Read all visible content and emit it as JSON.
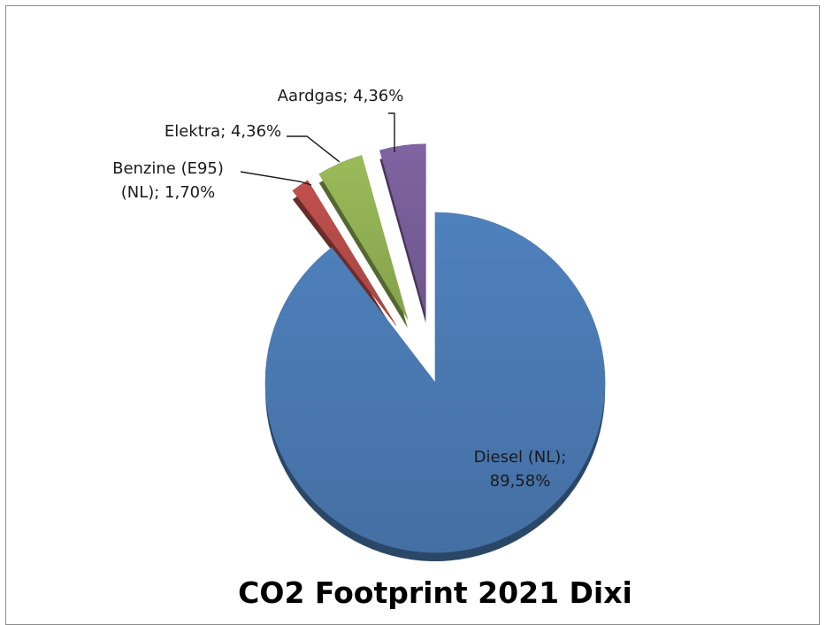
{
  "chart_data": {
    "type": "pie",
    "title": "CO2 Footprint 2021 Dixi",
    "slices": [
      {
        "name": "Diesel (NL)",
        "value": 89.58,
        "label_lines": [
          "Diesel (NL);",
          "89,58%"
        ],
        "color": "#4f81bd"
      },
      {
        "name": "Benzine (E95) (NL)",
        "value": 1.7,
        "label_lines": [
          "Benzine (E95)",
          "(NL); 1,70%"
        ],
        "color": "#c0504d"
      },
      {
        "name": "Elektra",
        "value": 4.36,
        "label_lines": [
          "Elektra; 4,36%"
        ],
        "color": "#9bbb59"
      },
      {
        "name": "Aardgas",
        "value": 4.36,
        "label_lines": [
          "Aardgas; 4,36%"
        ],
        "color": "#8064a2"
      }
    ],
    "legend": "none"
  }
}
